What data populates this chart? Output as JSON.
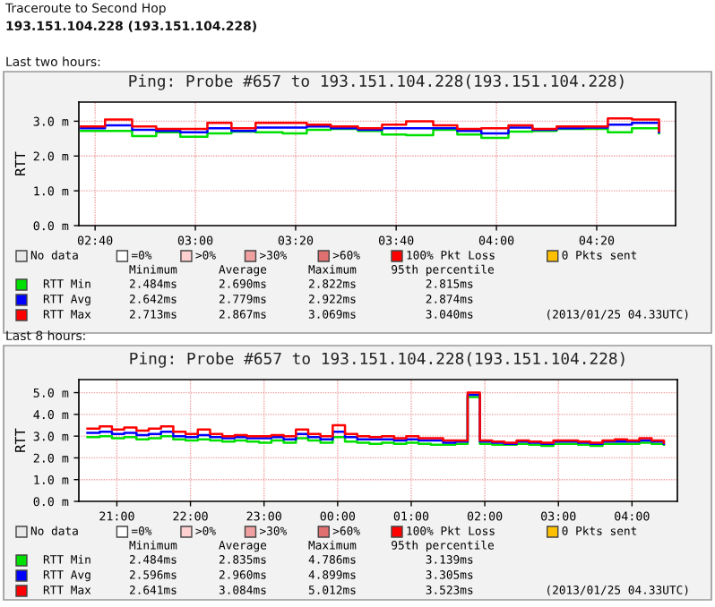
{
  "chart_data": [
    {
      "type": "step",
      "title": "Ping: Probe #657 to 193.151.104.228(193.151.104.228)",
      "ylabel": "RTT",
      "x": [
        2.62,
        2.7,
        2.79,
        2.87,
        2.95,
        3.04,
        3.12,
        3.2,
        3.29,
        3.37,
        3.45,
        3.54,
        3.62,
        3.7,
        3.79,
        3.87,
        3.95,
        4.04,
        4.12,
        4.2,
        4.29,
        4.37,
        4.45,
        4.54
      ],
      "series": [
        {
          "name": "RTT Min",
          "color": "#00e000",
          "values": [
            2.72,
            2.72,
            2.57,
            2.68,
            2.55,
            2.65,
            2.7,
            2.68,
            2.65,
            2.75,
            2.78,
            2.72,
            2.62,
            2.6,
            2.75,
            2.62,
            2.52,
            2.7,
            2.72,
            2.78,
            2.78,
            2.68,
            2.8,
            2.65
          ]
        },
        {
          "name": "RTT Avg",
          "color": "#0000ff",
          "values": [
            2.8,
            2.88,
            2.75,
            2.72,
            2.68,
            2.8,
            2.72,
            2.82,
            2.82,
            2.85,
            2.8,
            2.75,
            2.8,
            2.8,
            2.8,
            2.72,
            2.65,
            2.82,
            2.75,
            2.8,
            2.82,
            2.9,
            2.95,
            2.68
          ]
        },
        {
          "name": "RTT Max",
          "color": "#ff0000",
          "values": [
            2.85,
            3.05,
            2.85,
            2.78,
            2.78,
            2.95,
            2.8,
            2.95,
            2.95,
            2.9,
            2.85,
            2.8,
            2.9,
            3.0,
            2.88,
            2.78,
            2.8,
            2.88,
            2.78,
            2.85,
            2.85,
            3.08,
            3.05,
            2.72
          ]
        },
        {
          "name": "No data",
          "color": "#e8e8e8",
          "values": [
            null,
            null,
            null,
            null,
            null,
            null,
            null,
            null,
            null,
            null,
            null,
            null,
            null,
            null,
            null,
            null,
            null,
            null,
            null,
            null,
            null,
            null,
            null,
            null
          ]
        },
        {
          "name": "=0%",
          "color": "#ffffff",
          "values": [
            null,
            null,
            null,
            null,
            null,
            null,
            null,
            null,
            null,
            null,
            null,
            null,
            null,
            null,
            null,
            null,
            null,
            null,
            null,
            null,
            null,
            null,
            null,
            null
          ]
        },
        {
          "name": ">0%",
          "color": "#ffd0d0",
          "values": [
            null,
            null,
            null,
            null,
            null,
            null,
            null,
            null,
            null,
            null,
            null,
            null,
            null,
            null,
            null,
            null,
            null,
            null,
            null,
            null,
            null,
            null,
            null,
            null
          ]
        },
        {
          "name": ">30%",
          "color": "#f0a0a0",
          "values": [
            null,
            null,
            null,
            null,
            null,
            null,
            null,
            null,
            null,
            null,
            null,
            null,
            null,
            null,
            null,
            null,
            null,
            null,
            null,
            null,
            null,
            null,
            null,
            null
          ]
        },
        {
          "name": ">60%",
          "color": "#e07070",
          "values": [
            null,
            null,
            null,
            null,
            null,
            null,
            null,
            null,
            null,
            null,
            null,
            null,
            null,
            null,
            null,
            null,
            null,
            null,
            null,
            null,
            null,
            null,
            null,
            null
          ]
        },
        {
          "name": "100% Pkt Loss",
          "color": "#ff0000",
          "values": [
            null,
            null,
            null,
            null,
            null,
            null,
            null,
            null,
            null,
            null,
            null,
            null,
            null,
            null,
            null,
            null,
            null,
            null,
            null,
            null,
            null,
            null,
            null,
            null
          ]
        },
        {
          "name": "0 Pkts sent",
          "color": "#ffc000",
          "values": [
            null,
            null,
            null,
            null,
            null,
            null,
            null,
            null,
            null,
            null,
            null,
            null,
            null,
            null,
            null,
            null,
            null,
            null,
            null,
            null,
            null,
            null,
            null,
            null
          ]
        }
      ],
      "xlim": [
        2.613,
        4.595
      ],
      "ylim": [
        0,
        3.55
      ],
      "xticks": [
        {
          "value": 2.667,
          "label": "02:40"
        },
        {
          "value": 3,
          "label": "03:00"
        },
        {
          "value": 3.333,
          "label": "03:20"
        },
        {
          "value": 3.667,
          "label": "03:40"
        },
        {
          "value": 4,
          "label": "04:00"
        },
        {
          "value": 4.333,
          "label": "04:20"
        }
      ],
      "yticks": [
        {
          "value": 0,
          "label": "0.0 m"
        },
        {
          "value": 1,
          "label": "1.0 m"
        },
        {
          "value": 2,
          "label": "2.0 m"
        },
        {
          "value": 3,
          "label": "3.0 m"
        }
      ],
      "grid": true,
      "legend": "bottom",
      "annotations": [
        "Traceroute to Second Hop",
        "193.151.104.228 (193.151.104.228)",
        "Last two hours:",
        "Minimum      Average      Maximum     95th percentile",
        "2.484ms      2.690ms      2.822ms          2.815ms",
        "2.642ms      2.779ms      2.922ms          2.874ms",
        "2.713ms      2.867ms      3.069ms          3.040ms",
        "(2013/01/25 04.33UTC)"
      ]
    },
    {
      "type": "step",
      "title": "Ping: Probe #657 to 193.151.104.228(193.151.104.228)",
      "ylabel": "RTT",
      "x": [
        "2013-01-24T20:36",
        "2013-01-24T20:46",
        "2013-01-24T20:56",
        "2013-01-24T21:06",
        "2013-01-24T21:16",
        "2013-01-24T21:26",
        "2013-01-24T21:36",
        "2013-01-24T21:46",
        "2013-01-24T21:56",
        "2013-01-24T22:06",
        "2013-01-24T22:16",
        "2013-01-24T22:26",
        "2013-01-24T22:36",
        "2013-01-24T22:46",
        "2013-01-24T22:56",
        "2013-01-24T23:06",
        "2013-01-24T23:16",
        "2013-01-24T23:26",
        "2013-01-24T23:36",
        "2013-01-24T23:46",
        "2013-01-24T23:56",
        "2013-01-25T00:06",
        "2013-01-25T00:16",
        "2013-01-25T00:26",
        "2013-01-25T00:36",
        "2013-01-25T00:46",
        "2013-01-25T00:56",
        "2013-01-25T01:06",
        "2013-01-25T01:16",
        "2013-01-25T01:26",
        "2013-01-25T01:36",
        "2013-01-25T01:46",
        "2013-01-25T01:56",
        "2013-01-25T02:06",
        "2013-01-25T02:16",
        "2013-01-25T02:26",
        "2013-01-25T02:36",
        "2013-01-25T02:46",
        "2013-01-25T02:56",
        "2013-01-25T03:06",
        "2013-01-25T03:16",
        "2013-01-25T03:26",
        "2013-01-25T03:36",
        "2013-01-25T03:46",
        "2013-01-25T03:56",
        "2013-01-25T04:06",
        "2013-01-25T04:16",
        "2013-01-25T04:26"
      ],
      "series": [
        {
          "name": "RTT Min",
          "color": "#00e000",
          "values": [
            2.95,
            3.0,
            2.9,
            2.95,
            2.85,
            2.9,
            3.0,
            2.85,
            2.8,
            2.85,
            2.8,
            2.75,
            2.8,
            2.75,
            2.7,
            2.8,
            2.7,
            2.9,
            2.8,
            2.7,
            2.95,
            2.75,
            2.7,
            2.65,
            2.7,
            2.65,
            2.7,
            2.65,
            2.6,
            2.6,
            2.65,
            4.8,
            2.65,
            2.6,
            2.6,
            2.65,
            2.6,
            2.55,
            2.65,
            2.65,
            2.6,
            2.55,
            2.65,
            2.65,
            2.65,
            2.7,
            2.65,
            2.6
          ]
        },
        {
          "name": "RTT Avg",
          "color": "#0000ff",
          "values": [
            3.15,
            3.2,
            3.1,
            3.15,
            3.05,
            3.1,
            3.2,
            3.0,
            2.95,
            3.05,
            2.95,
            2.9,
            2.95,
            2.9,
            2.9,
            2.95,
            2.85,
            3.1,
            2.95,
            2.85,
            3.2,
            2.95,
            2.85,
            2.85,
            2.85,
            2.8,
            2.85,
            2.8,
            2.8,
            2.7,
            2.75,
            4.9,
            2.75,
            2.7,
            2.65,
            2.75,
            2.7,
            2.65,
            2.75,
            2.75,
            2.7,
            2.65,
            2.75,
            2.75,
            2.75,
            2.8,
            2.75,
            2.65
          ]
        },
        {
          "name": "RTT Max",
          "color": "#ff0000",
          "values": [
            3.35,
            3.45,
            3.3,
            3.4,
            3.25,
            3.35,
            3.45,
            3.2,
            3.1,
            3.3,
            3.1,
            3.0,
            3.05,
            3.0,
            3.0,
            3.05,
            3.0,
            3.3,
            3.1,
            3.0,
            3.5,
            3.1,
            3.0,
            2.95,
            3.0,
            2.9,
            3.0,
            2.9,
            2.9,
            2.8,
            2.8,
            5.0,
            2.8,
            2.75,
            2.7,
            2.8,
            2.75,
            2.7,
            2.8,
            2.8,
            2.75,
            2.7,
            2.8,
            2.85,
            2.8,
            2.9,
            2.8,
            2.7
          ]
        },
        {
          "name": "No data",
          "color": "#e8e8e8",
          "values": [
            null,
            null,
            null,
            null,
            null,
            null,
            null,
            null,
            null,
            null,
            null,
            null,
            null,
            null,
            null,
            null,
            null,
            null,
            null,
            null,
            null,
            null,
            null,
            null,
            null,
            null,
            null,
            null,
            null,
            null,
            null,
            null,
            null,
            null,
            null,
            null,
            null,
            null,
            null,
            null,
            null,
            null,
            null,
            null,
            null,
            null,
            null,
            null
          ]
        },
        {
          "name": "=0%",
          "color": "#ffffff",
          "values": [
            null,
            null,
            null,
            null,
            null,
            null,
            null,
            null,
            null,
            null,
            null,
            null,
            null,
            null,
            null,
            null,
            null,
            null,
            null,
            null,
            null,
            null,
            null,
            null,
            null,
            null,
            null,
            null,
            null,
            null,
            null,
            null,
            null,
            null,
            null,
            null,
            null,
            null,
            null,
            null,
            null,
            null,
            null,
            null,
            null,
            null,
            null,
            null
          ]
        },
        {
          "name": ">0%",
          "color": "#ffd0d0",
          "values": [
            null,
            null,
            null,
            null,
            null,
            null,
            null,
            null,
            null,
            null,
            null,
            null,
            null,
            null,
            null,
            null,
            null,
            null,
            null,
            null,
            null,
            null,
            null,
            null,
            null,
            null,
            null,
            null,
            null,
            null,
            null,
            null,
            null,
            null,
            null,
            null,
            null,
            null,
            null,
            null,
            null,
            null,
            null,
            null,
            null,
            null,
            null,
            null
          ]
        },
        {
          "name": ">30%",
          "color": "#f0a0a0",
          "values": [
            null,
            null,
            null,
            null,
            null,
            null,
            null,
            null,
            null,
            null,
            null,
            null,
            null,
            null,
            null,
            null,
            null,
            null,
            null,
            null,
            null,
            null,
            null,
            null,
            null,
            null,
            null,
            null,
            null,
            null,
            null,
            null,
            null,
            null,
            null,
            null,
            null,
            null,
            null,
            null,
            null,
            null,
            null,
            null,
            null,
            null,
            null,
            null
          ]
        },
        {
          "name": ">60%",
          "color": "#e07070",
          "values": [
            null,
            null,
            null,
            null,
            null,
            null,
            null,
            null,
            null,
            null,
            null,
            null,
            null,
            null,
            null,
            null,
            null,
            null,
            null,
            null,
            null,
            null,
            null,
            null,
            null,
            null,
            null,
            null,
            null,
            null,
            null,
            null,
            null,
            null,
            null,
            null,
            null,
            null,
            null,
            null,
            null,
            null,
            null,
            null,
            null,
            null,
            null,
            null
          ]
        },
        {
          "name": "100% Pkt Loss",
          "color": "#ff0000",
          "values": [
            null,
            null,
            null,
            null,
            null,
            null,
            null,
            null,
            null,
            null,
            null,
            null,
            null,
            null,
            null,
            null,
            null,
            null,
            null,
            null,
            null,
            null,
            null,
            null,
            null,
            null,
            null,
            null,
            null,
            null,
            null,
            null,
            null,
            null,
            null,
            null,
            null,
            null,
            null,
            null,
            null,
            null,
            null,
            null,
            null,
            null,
            null,
            null
          ]
        },
        {
          "name": "0 Pkts sent",
          "color": "#ffc000",
          "values": [
            null,
            null,
            null,
            null,
            null,
            null,
            null,
            null,
            null,
            null,
            null,
            null,
            null,
            null,
            null,
            null,
            null,
            null,
            null,
            null,
            null,
            null,
            null,
            null,
            null,
            null,
            null,
            null,
            null,
            null,
            null,
            null,
            null,
            null,
            null,
            null,
            null,
            null,
            null,
            null,
            null,
            null,
            null,
            null,
            null,
            null,
            null,
            null
          ]
        }
      ],
      "xlim": [
        "2013-01-24T20:29",
        "2013-01-25T04:37"
      ],
      "ylim": [
        0,
        5.6
      ],
      "xticks": [
        {
          "value": "2013-01-24T21:00",
          "label": "21:00"
        },
        {
          "value": "2013-01-24T22:00",
          "label": "22:00"
        },
        {
          "value": "2013-01-24T23:00",
          "label": "23:00"
        },
        {
          "value": "2013-01-25T00:00",
          "label": "00:00"
        },
        {
          "value": "2013-01-25T01:00",
          "label": "01:00"
        },
        {
          "value": "2013-01-25T02:00",
          "label": "02:00"
        },
        {
          "value": "2013-01-25T03:00",
          "label": "03:00"
        },
        {
          "value": "2013-01-25T04:00",
          "label": "04:00"
        }
      ],
      "yticks": [
        {
          "value": 0,
          "label": "0.0 m"
        },
        {
          "value": 1,
          "label": "1.0 m"
        },
        {
          "value": 2,
          "label": "2.0 m"
        },
        {
          "value": 3,
          "label": "3.0 m"
        },
        {
          "value": 4,
          "label": "4.0 m"
        },
        {
          "value": 5,
          "label": "5.0 m"
        }
      ],
      "grid": true,
      "legend": "bottom",
      "annotations": [
        "Last 8 hours:",
        "Minimum      Average      Maximum     95th percentile",
        "2.484ms      2.835ms      4.786ms          3.139ms",
        "2.596ms      2.960ms      4.899ms          3.305ms",
        "2.641ms      3.084ms      5.012ms          3.523ms",
        "(2013/01/25 04.33UTC)"
      ]
    }
  ]
}
